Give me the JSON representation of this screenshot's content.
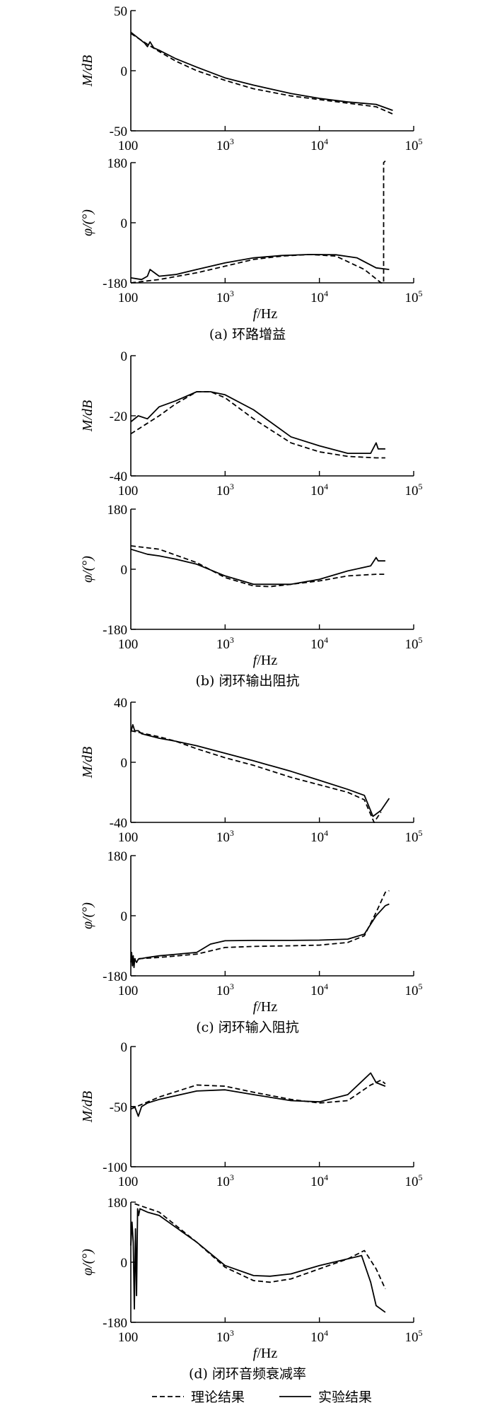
{
  "chart_data": [
    {
      "type": "line",
      "panel": "a",
      "subplot": "magnitude",
      "xscale": "log",
      "xlim": [
        100,
        100000
      ],
      "ylim": [
        -50,
        50
      ],
      "yticks": [
        50,
        0,
        -50
      ],
      "xticks": [
        "100",
        "10^3",
        "10^4",
        "10^5"
      ],
      "xlabel": "",
      "ylabel": "M/dB",
      "caption": "",
      "series": [
        {
          "name": "理论结果",
          "dash": true,
          "x": [
            100,
            150,
            200,
            300,
            500,
            1000,
            2000,
            5000,
            10000,
            20000,
            40000,
            60000
          ],
          "y": [
            31,
            22,
            16,
            8,
            0,
            -8,
            -15,
            -21,
            -24,
            -27,
            -30,
            -36
          ]
        },
        {
          "name": "实验结果",
          "dash": false,
          "x": [
            100,
            140,
            150,
            160,
            175,
            200,
            300,
            500,
            1000,
            2000,
            5000,
            10000,
            20000,
            40000,
            60000
          ],
          "y": [
            32,
            23,
            20,
            24,
            19,
            17,
            10,
            3,
            -6,
            -12,
            -19,
            -23,
            -26,
            -28,
            -33
          ]
        }
      ]
    },
    {
      "type": "line",
      "panel": "a",
      "subplot": "phase",
      "xscale": "log",
      "xlim": [
        100,
        100000
      ],
      "ylim": [
        -180,
        180
      ],
      "yticks": [
        180,
        0,
        -180
      ],
      "xticks": [
        "100",
        "10^3",
        "10^4",
        "10^5"
      ],
      "xlabel": "f/Hz",
      "ylabel": "φ/(°)",
      "caption": "(a) 环路增益",
      "series": [
        {
          "name": "理论结果",
          "dash": true,
          "x": [
            100,
            200,
            500,
            1000,
            2000,
            4000,
            8000,
            15000,
            30000,
            45000,
            48000,
            48000,
            50000
          ],
          "y": [
            -180,
            -170,
            -150,
            -130,
            -110,
            -100,
            -95,
            -100,
            -140,
            -180,
            -180,
            180,
            185
          ]
        },
        {
          "name": "实验结果",
          "dash": false,
          "x": [
            100,
            130,
            150,
            160,
            200,
            300,
            500,
            1000,
            2000,
            4000,
            8000,
            15000,
            25000,
            40000,
            55000
          ],
          "y": [
            -165,
            -170,
            -160,
            -140,
            -160,
            -155,
            -140,
            -120,
            -105,
            -98,
            -95,
            -96,
            -105,
            -135,
            -140
          ]
        }
      ]
    },
    {
      "type": "line",
      "panel": "b",
      "subplot": "magnitude",
      "xscale": "log",
      "xlim": [
        100,
        100000
      ],
      "ylim": [
        -40,
        0
      ],
      "yticks": [
        0,
        -20,
        -40
      ],
      "xticks": [
        "100",
        "10^3",
        "10^4",
        "10^5"
      ],
      "xlabel": "",
      "ylabel": "M/dB",
      "caption": "",
      "series": [
        {
          "name": "理论结果",
          "dash": true,
          "x": [
            100,
            200,
            300,
            500,
            700,
            1000,
            2000,
            5000,
            10000,
            20000,
            40000,
            50000
          ],
          "y": [
            -26,
            -20,
            -16,
            -12,
            -12,
            -14,
            -21,
            -29,
            -32,
            -33.5,
            -34,
            -34
          ]
        },
        {
          "name": "实验结果",
          "dash": false,
          "x": [
            100,
            120,
            150,
            200,
            300,
            500,
            700,
            1000,
            2000,
            5000,
            10000,
            20000,
            35000,
            40000,
            42000,
            50000
          ],
          "y": [
            -22,
            -20,
            -21,
            -17,
            -15,
            -12,
            -12,
            -13,
            -18,
            -27,
            -30,
            -32.5,
            -32.5,
            -29,
            -31,
            -31
          ]
        }
      ]
    },
    {
      "type": "line",
      "panel": "b",
      "subplot": "phase",
      "xscale": "log",
      "xlim": [
        100,
        100000
      ],
      "ylim": [
        -180,
        180
      ],
      "yticks": [
        180,
        0,
        -180
      ],
      "xticks": [
        "100",
        "10^3",
        "10^4",
        "10^5"
      ],
      "xlabel": "f/Hz",
      "ylabel": "φ/(°)",
      "caption": "(b) 闭环输出阻抗",
      "series": [
        {
          "name": "理论结果",
          "dash": true,
          "x": [
            100,
            200,
            500,
            1000,
            2000,
            3000,
            5000,
            10000,
            20000,
            40000,
            50000
          ],
          "y": [
            70,
            60,
            20,
            -25,
            -50,
            -52,
            -45,
            -35,
            -20,
            -15,
            -15
          ]
        },
        {
          "name": "实验结果",
          "dash": false,
          "x": [
            100,
            150,
            200,
            300,
            500,
            1000,
            2000,
            5000,
            10000,
            20000,
            35000,
            40000,
            42000,
            50000
          ],
          "y": [
            60,
            45,
            40,
            30,
            15,
            -20,
            -45,
            -45,
            -30,
            -5,
            10,
            35,
            25,
            25
          ]
        }
      ]
    },
    {
      "type": "line",
      "panel": "c",
      "subplot": "magnitude",
      "xscale": "log",
      "xlim": [
        100,
        100000
      ],
      "ylim": [
        -40,
        40
      ],
      "yticks": [
        40,
        0,
        -40
      ],
      "xticks": [
        "100",
        "10^3",
        "10^4",
        "10^5"
      ],
      "xlabel": "",
      "ylabel": "M/dB",
      "caption": "",
      "series": [
        {
          "name": "理论结果",
          "dash": true,
          "x": [
            100,
            200,
            300,
            500,
            1000,
            2000,
            5000,
            10000,
            20000,
            30000,
            38000,
            45000
          ],
          "y": [
            21,
            17,
            14,
            9,
            3,
            -2,
            -10,
            -15,
            -20,
            -25,
            -40,
            -33
          ]
        },
        {
          "name": "实验结果",
          "dash": false,
          "x": [
            100,
            105,
            110,
            120,
            130,
            200,
            300,
            500,
            1000,
            2000,
            5000,
            10000,
            20000,
            30000,
            37000,
            45000,
            55000
          ],
          "y": [
            20,
            25,
            21,
            21,
            19,
            16,
            14,
            11,
            6,
            1,
            -6,
            -12,
            -18,
            -22,
            -36,
            -32,
            -24
          ]
        }
      ]
    },
    {
      "type": "line",
      "panel": "c",
      "subplot": "phase",
      "xscale": "log",
      "xlim": [
        100,
        100000
      ],
      "ylim": [
        -180,
        180
      ],
      "yticks": [
        180,
        0,
        -180
      ],
      "xticks": [
        "100",
        "10^3",
        "10^4",
        "10^5"
      ],
      "xlabel": "f/Hz",
      "ylabel": "φ/(°)",
      "caption": "(c) 闭环输入阻抗",
      "series": [
        {
          "name": "理论结果",
          "dash": true,
          "x": [
            100,
            200,
            500,
            1000,
            2000,
            5000,
            10000,
            20000,
            30000,
            40000,
            50000,
            55000
          ],
          "y": [
            -130,
            -125,
            -115,
            -95,
            -92,
            -90,
            -88,
            -80,
            -60,
            10,
            70,
            75
          ]
        },
        {
          "name": "实验结果",
          "dash": false,
          "x": [
            100,
            102,
            104,
            106,
            108,
            110,
            115,
            120,
            150,
            200,
            500,
            700,
            1000,
            2000,
            5000,
            10000,
            20000,
            30000,
            40000,
            50000,
            55000
          ],
          "y": [
            -140,
            -110,
            -150,
            -120,
            -155,
            -130,
            -140,
            -130,
            -125,
            -120,
            -110,
            -85,
            -75,
            -74,
            -74,
            -73,
            -70,
            -55,
            0,
            30,
            35
          ]
        }
      ]
    },
    {
      "type": "line",
      "panel": "d",
      "subplot": "magnitude",
      "xscale": "log",
      "xlim": [
        100,
        100000
      ],
      "ylim": [
        -100,
        0
      ],
      "yticks": [
        0,
        -50,
        -100
      ],
      "xticks": [
        "100",
        "10^3",
        "10^4",
        "10^5"
      ],
      "xlabel": "",
      "ylabel": "M/dB",
      "caption": "",
      "series": [
        {
          "name": "理论结果",
          "dash": true,
          "x": [
            100,
            200,
            500,
            1000,
            2000,
            5000,
            10000,
            20000,
            35000,
            45000,
            50000
          ],
          "y": [
            -52,
            -42,
            -32,
            -33,
            -38,
            -44,
            -47,
            -45,
            -32,
            -28,
            -31
          ]
        },
        {
          "name": "实验结果",
          "dash": false,
          "x": [
            100,
            110,
            120,
            130,
            150,
            200,
            500,
            1000,
            2000,
            5000,
            10000,
            20000,
            35000,
            40000,
            50000
          ],
          "y": [
            -50,
            -50,
            -58,
            -50,
            -47,
            -44,
            -37,
            -36,
            -40,
            -45,
            -46,
            -40,
            -22,
            -30,
            -33
          ]
        }
      ]
    },
    {
      "type": "line",
      "panel": "d",
      "subplot": "phase",
      "xscale": "log",
      "xlim": [
        100,
        100000
      ],
      "ylim": [
        -180,
        180
      ],
      "yticks": [
        180,
        0,
        -180
      ],
      "xticks": [
        "100",
        "10^3",
        "10^4",
        "10^5"
      ],
      "xlabel": "f/Hz",
      "ylabel": "φ/(°)",
      "caption": "(d) 闭环音频衰减率",
      "series": [
        {
          "name": "理论结果",
          "dash": true,
          "x": [
            110,
            200,
            500,
            1000,
            2000,
            3000,
            5000,
            10000,
            20000,
            30000,
            40000,
            50000
          ],
          "y": [
            175,
            150,
            60,
            -15,
            -55,
            -60,
            -50,
            -20,
            10,
            35,
            -20,
            -80
          ]
        },
        {
          "name": "实验结果",
          "dash": false,
          "x": [
            100,
            103,
            106,
            109,
            112,
            115,
            118,
            121,
            125,
            150,
            200,
            500,
            1000,
            2000,
            3000,
            5000,
            10000,
            20000,
            28000,
            35000,
            40000,
            50000
          ],
          "y": [
            50,
            120,
            60,
            -140,
            100,
            -100,
            160,
            140,
            160,
            150,
            140,
            60,
            -10,
            -40,
            -42,
            -35,
            -10,
            10,
            20,
            -60,
            -130,
            -150
          ]
        }
      ]
    }
  ],
  "legend": {
    "placement": "bottom-center",
    "items": [
      {
        "name": "理论结果",
        "dash": true
      },
      {
        "name": "实验结果",
        "dash": false
      }
    ]
  },
  "colors": {
    "line": "#000000",
    "background": "#ffffff"
  }
}
